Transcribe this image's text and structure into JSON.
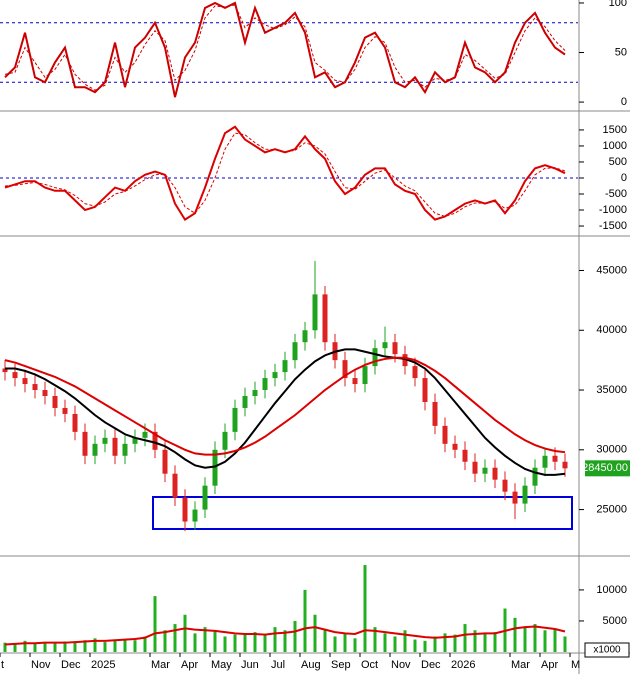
{
  "chart_data": [
    {
      "type": "line",
      "ylim": [
        -8,
        103
      ],
      "yticks": [
        0,
        50,
        100
      ],
      "levels": [
        20,
        80
      ],
      "level_color": "#0000cc",
      "series": [
        {
          "color": "#cc0000",
          "dashed": false,
          "values": [
            25,
            35,
            70,
            25,
            20,
            40,
            55,
            15,
            15,
            10,
            20,
            60,
            15,
            55,
            65,
            80,
            55,
            5,
            45,
            60,
            95,
            100,
            95,
            100,
            60,
            95,
            70,
            75,
            80,
            90,
            70,
            25,
            30,
            15,
            20,
            40,
            65,
            70,
            55,
            20,
            15,
            25,
            10,
            30,
            20,
            25,
            60,
            35,
            30,
            20,
            30,
            60,
            80,
            90,
            70,
            55,
            48,
            null
          ]
        },
        {
          "color": "#cc0000",
          "dashed": true,
          "values": [
            28,
            30,
            55,
            40,
            25,
            33,
            48,
            28,
            18,
            12,
            17,
            45,
            30,
            40,
            58,
            72,
            62,
            22,
            32,
            52,
            85,
            97,
            96,
            98,
            75,
            85,
            78,
            74,
            78,
            86,
            76,
            40,
            32,
            22,
            20,
            33,
            55,
            66,
            60,
            35,
            20,
            22,
            15,
            24,
            22,
            24,
            48,
            42,
            33,
            24,
            28,
            50,
            72,
            85,
            76,
            62,
            52,
            null
          ]
        }
      ]
    },
    {
      "type": "line",
      "ylim": [
        -1780,
        2060
      ],
      "yticks": [
        -1500,
        -1000,
        -500,
        0,
        500,
        1000,
        1500
      ],
      "levels": [
        0
      ],
      "level_color": "#0000cc",
      "series": [
        {
          "color": "#dd0000",
          "dashed": false,
          "values": [
            -300,
            -200,
            -100,
            -100,
            -300,
            -400,
            -400,
            -700,
            -1000,
            -900,
            -600,
            -300,
            -400,
            -100,
            100,
            200,
            100,
            -800,
            -1300,
            -1100,
            -300,
            600,
            1400,
            1600,
            1200,
            1000,
            800,
            900,
            800,
            900,
            1300,
            900,
            600,
            -100,
            -500,
            -300,
            100,
            300,
            300,
            -200,
            -400,
            -500,
            -1000,
            -1300,
            -1200,
            -1000,
            -800,
            -700,
            -800,
            -700,
            -1100,
            -700,
            -100,
            300,
            400,
            300,
            150,
            null
          ]
        },
        {
          "color": "#dd0000",
          "dashed": true,
          "values": [
            -250,
            -230,
            -180,
            -140,
            -200,
            -300,
            -370,
            -550,
            -800,
            -880,
            -750,
            -500,
            -420,
            -250,
            -50,
            100,
            120,
            -300,
            -900,
            -1100,
            -700,
            0,
            900,
            1400,
            1350,
            1100,
            900,
            880,
            820,
            860,
            1100,
            1000,
            750,
            200,
            -300,
            -350,
            -100,
            150,
            250,
            0,
            -250,
            -400,
            -750,
            -1100,
            -1200,
            -1100,
            -900,
            -780,
            -790,
            -740,
            -950,
            -850,
            -400,
            100,
            300,
            320,
            220,
            null
          ]
        }
      ]
    },
    {
      "type": "candlestick",
      "ylim": [
        21200,
        47800
      ],
      "yticks": [
        25000,
        30000,
        35000,
        40000,
        45000
      ],
      "up_color": "#1fa31f",
      "down_color": "#dd2222",
      "open": [
        36800,
        36500,
        36000,
        35500,
        35000,
        34500,
        33500,
        33000,
        31500,
        29500,
        30500,
        31000,
        29500,
        30500,
        31000,
        31500,
        30000,
        28000,
        26000,
        24000,
        25000,
        27000,
        30000,
        31500,
        33500,
        34500,
        35000,
        36000,
        36500,
        37500,
        39000,
        40000,
        43000,
        39000,
        37500,
        36000,
        35500,
        37000,
        38500,
        39000,
        38000,
        37000,
        36000,
        34000,
        32000,
        30500,
        30000,
        29000,
        28000,
        28500,
        27500,
        26500,
        25500,
        27000,
        28500,
        29500,
        29000,
        null
      ],
      "high": [
        37500,
        37200,
        36700,
        36200,
        35700,
        35200,
        34200,
        33700,
        32200,
        31200,
        31700,
        31700,
        31200,
        31700,
        32200,
        32200,
        30700,
        28700,
        26700,
        25700,
        27700,
        30700,
        32200,
        34200,
        35200,
        35700,
        36700,
        37200,
        38200,
        39700,
        40700,
        45800,
        43700,
        39700,
        38200,
        36700,
        37700,
        39200,
        40300,
        39700,
        38700,
        37700,
        36700,
        34700,
        32700,
        31200,
        30700,
        29700,
        29200,
        29200,
        28200,
        27200,
        27700,
        29200,
        30200,
        30200,
        29700,
        null
      ],
      "low": [
        35800,
        35300,
        34800,
        34300,
        33800,
        32800,
        32300,
        30800,
        28800,
        28800,
        29800,
        28800,
        28800,
        29800,
        30300,
        29300,
        27300,
        25300,
        23200,
        23300,
        24300,
        26300,
        29300,
        30800,
        32800,
        33800,
        34300,
        35300,
        35800,
        36800,
        38300,
        39300,
        38300,
        36800,
        35300,
        34800,
        34800,
        36300,
        37800,
        37300,
        36300,
        35300,
        33300,
        31300,
        29800,
        29300,
        28300,
        27300,
        27300,
        26800,
        25800,
        24200,
        24800,
        26300,
        27800,
        28300,
        27750,
        null
      ],
      "close": [
        36500,
        36000,
        35500,
        35000,
        34500,
        33500,
        33000,
        31500,
        29500,
        30500,
        31000,
        29500,
        30500,
        31000,
        31500,
        30000,
        28000,
        26000,
        24000,
        25000,
        27000,
        30000,
        31500,
        33500,
        34500,
        35000,
        36000,
        36500,
        37500,
        39000,
        40000,
        43000,
        39000,
        37500,
        36000,
        35500,
        37000,
        38500,
        39000,
        38000,
        37000,
        36000,
        34000,
        32000,
        30500,
        30000,
        29000,
        28000,
        28500,
        27500,
        26500,
        25500,
        27000,
        28500,
        29500,
        29000,
        28450,
        null
      ],
      "series": [
        {
          "color": "#000000",
          "values": [
            36800,
            36800,
            36600,
            36300,
            35900,
            35400,
            34900,
            34300,
            33600,
            32900,
            32300,
            31800,
            31300,
            31000,
            30800,
            30600,
            30300,
            29800,
            29200,
            28700,
            28500,
            28600,
            29000,
            29700,
            30600,
            31700,
            32800,
            33900,
            34900,
            35900,
            36700,
            37400,
            37900,
            38200,
            38400,
            38400,
            38200,
            38000,
            37800,
            37700,
            37600,
            37300,
            36800,
            36000,
            35000,
            34000,
            33000,
            32000,
            31000,
            30200,
            29500,
            28900,
            28400,
            28100,
            27900,
            27900,
            28000,
            null
          ]
        },
        {
          "color": "#dd0000",
          "values": [
            37500,
            37300,
            37000,
            36700,
            36400,
            36100,
            35700,
            35300,
            34800,
            34300,
            33800,
            33300,
            32800,
            32300,
            31800,
            31300,
            30800,
            30400,
            30000,
            29700,
            29600,
            29600,
            29700,
            29900,
            30200,
            30600,
            31100,
            31700,
            32300,
            32900,
            33600,
            34300,
            35000,
            35600,
            36200,
            36700,
            37100,
            37400,
            37600,
            37700,
            37700,
            37500,
            37100,
            36600,
            36000,
            35300,
            34600,
            33900,
            33200,
            32500,
            31900,
            31300,
            30800,
            30400,
            30100,
            29900,
            29800,
            null
          ]
        }
      ],
      "last_price": {
        "value": 28450,
        "label": "28450.00"
      }
    },
    {
      "type": "bar",
      "ylim": [
        0,
        15300
      ],
      "yticks": [
        5000,
        10000
      ],
      "color": "#22b022",
      "unit_label": "x1000",
      "categories": [
        "t",
        null,
        null,
        "Nov",
        null,
        null,
        "Dec",
        null,
        null,
        "2025",
        null,
        null,
        null,
        null,
        null,
        "Mar",
        null,
        null,
        "Apr",
        null,
        null,
        "May",
        null,
        null,
        "Jun",
        null,
        null,
        "Jul",
        null,
        null,
        "Aug",
        null,
        null,
        "Sep",
        null,
        null,
        "Oct",
        null,
        null,
        "Nov",
        null,
        null,
        "Dec",
        null,
        null,
        "2026",
        null,
        null,
        null,
        null,
        null,
        "Mar",
        null,
        null,
        "Apr",
        null,
        null,
        "M"
      ],
      "values": [
        1500,
        1200,
        1800,
        1300,
        1600,
        1400,
        1700,
        1500,
        1900,
        2200,
        1600,
        1800,
        2000,
        1900,
        2500,
        9000,
        3500,
        4500,
        6000,
        3000,
        4000,
        3500,
        2500,
        2800,
        3000,
        3200,
        2800,
        4000,
        3500,
        5000,
        10000,
        6000,
        3500,
        2500,
        3000,
        2200,
        14000,
        4000,
        3000,
        2500,
        3500,
        2000,
        1800,
        2500,
        3000,
        2800,
        4500,
        3500,
        3000,
        3200,
        7000,
        5500,
        4000,
        4500,
        3500,
        3800,
        2500,
        null
      ],
      "series": [
        {
          "color": "#dd0000",
          "values": [
            1200,
            1300,
            1400,
            1400,
            1500,
            1500,
            1500,
            1600,
            1700,
            1800,
            1800,
            1900,
            2000,
            2100,
            2300,
            3000,
            3200,
            3500,
            3800,
            3600,
            3500,
            3400,
            3200,
            3000,
            2900,
            2900,
            2800,
            3000,
            3100,
            3300,
            3800,
            4000,
            3600,
            3200,
            3000,
            2900,
            3500,
            3400,
            3200,
            3000,
            2800,
            2600,
            2400,
            2300,
            2400,
            2500,
            2800,
            2900,
            3000,
            3000,
            3400,
            3800,
            4000,
            4100,
            3900,
            3700,
            3300,
            null
          ]
        }
      ]
    }
  ]
}
